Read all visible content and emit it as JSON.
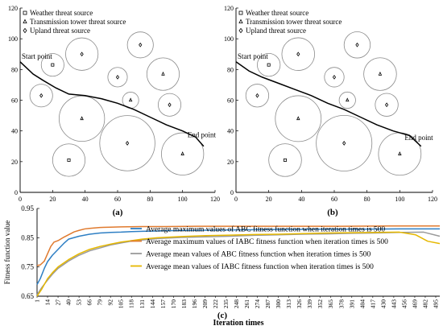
{
  "chart_data": [
    {
      "type": "scatter",
      "panel_label": "(a)",
      "xlim": [
        0,
        120
      ],
      "ylim": [
        0,
        120
      ],
      "xticks": [
        0,
        20,
        40,
        60,
        80,
        100,
        120
      ],
      "yticks": [
        0,
        20,
        40,
        60,
        80,
        100,
        120
      ],
      "grid": false,
      "legend": [
        "Weather threat source",
        "Transmission tower threat source",
        "Upland threat source"
      ],
      "legend_placement": "top-left",
      "annotations": [
        {
          "text": "Start point",
          "x": 1,
          "y": 87
        },
        {
          "text": "End point",
          "x": 103,
          "y": 36
        }
      ],
      "threats": [
        {
          "cx": 20,
          "cy": 83,
          "r": 7,
          "marker": "square"
        },
        {
          "cx": 38,
          "cy": 90,
          "r": 10,
          "marker": "diamond"
        },
        {
          "cx": 13,
          "cy": 63,
          "r": 7,
          "marker": "diamond"
        },
        {
          "cx": 38,
          "cy": 48,
          "r": 14,
          "marker": "triangle"
        },
        {
          "cx": 30,
          "cy": 21,
          "r": 10,
          "marker": "square"
        },
        {
          "cx": 60,
          "cy": 75,
          "r": 6,
          "marker": "diamond"
        },
        {
          "cx": 74,
          "cy": 96,
          "r": 8,
          "marker": "diamond"
        },
        {
          "cx": 68,
          "cy": 60,
          "r": 5,
          "marker": "triangle"
        },
        {
          "cx": 88,
          "cy": 77,
          "r": 10,
          "marker": "triangle"
        },
        {
          "cx": 92,
          "cy": 57,
          "r": 7,
          "marker": "diamond"
        },
        {
          "cx": 66,
          "cy": 32,
          "r": 17,
          "marker": "diamond"
        },
        {
          "cx": 100,
          "cy": 25,
          "r": 13,
          "marker": "triangle"
        }
      ],
      "path": {
        "x": [
          0,
          8,
          14,
          22,
          30,
          40,
          50,
          60,
          70,
          80,
          90,
          100,
          108,
          113
        ],
        "y": [
          85,
          77,
          73,
          68,
          64,
          63,
          61,
          58,
          54,
          49,
          44,
          40,
          36,
          30
        ]
      }
    },
    {
      "type": "scatter",
      "panel_label": "(b)",
      "xlim": [
        0,
        120
      ],
      "ylim": [
        0,
        120
      ],
      "xticks": [
        0,
        20,
        40,
        60,
        80,
        100,
        120
      ],
      "yticks": [
        0,
        20,
        40,
        60,
        80,
        100,
        120
      ],
      "grid": false,
      "legend": [
        "Weather threat source",
        "Transmission tower threat source",
        "Upland threat source"
      ],
      "legend_placement": "top-left",
      "annotations": [
        {
          "text": "Start point",
          "x": 1,
          "y": 87
        },
        {
          "text": "End point",
          "x": 103,
          "y": 34
        }
      ],
      "threats": [
        {
          "cx": 20,
          "cy": 83,
          "r": 7,
          "marker": "square"
        },
        {
          "cx": 38,
          "cy": 90,
          "r": 10,
          "marker": "diamond"
        },
        {
          "cx": 13,
          "cy": 63,
          "r": 7,
          "marker": "diamond"
        },
        {
          "cx": 38,
          "cy": 48,
          "r": 14,
          "marker": "triangle"
        },
        {
          "cx": 30,
          "cy": 21,
          "r": 10,
          "marker": "square"
        },
        {
          "cx": 60,
          "cy": 75,
          "r": 6,
          "marker": "diamond"
        },
        {
          "cx": 74,
          "cy": 96,
          "r": 8,
          "marker": "diamond"
        },
        {
          "cx": 68,
          "cy": 60,
          "r": 5,
          "marker": "triangle"
        },
        {
          "cx": 88,
          "cy": 77,
          "r": 10,
          "marker": "triangle"
        },
        {
          "cx": 92,
          "cy": 57,
          "r": 7,
          "marker": "diamond"
        },
        {
          "cx": 66,
          "cy": 32,
          "r": 17,
          "marker": "diamond"
        },
        {
          "cx": 100,
          "cy": 25,
          "r": 13,
          "marker": "triangle"
        }
      ],
      "path": {
        "x": [
          0,
          8,
          16,
          26,
          36,
          46,
          56,
          66,
          76,
          86,
          96,
          106,
          113
        ],
        "y": [
          85,
          79,
          75,
          71,
          67,
          63,
          58,
          54,
          49,
          44,
          40,
          37,
          30
        ]
      }
    },
    {
      "type": "line",
      "panel_label": "(c)",
      "xlabel": "Iteration times",
      "ylabel": "Fitness function value",
      "xlim": [
        1,
        500
      ],
      "ylim": [
        0.65,
        0.95
      ],
      "yticks": [
        0.65,
        0.75,
        0.85,
        0.95
      ],
      "ytick_labels": [
        "0.65",
        "0.75",
        "0.85",
        "0.95"
      ],
      "xticks": [
        1,
        14,
        27,
        40,
        53,
        66,
        79,
        92,
        105,
        118,
        131,
        144,
        157,
        170,
        183,
        196,
        209,
        222,
        235,
        248,
        261,
        274,
        287,
        300,
        313,
        326,
        339,
        352,
        365,
        378,
        391,
        404,
        417,
        430,
        443,
        456,
        469,
        482,
        495
      ],
      "grid": false,
      "legend_placement": "center-right",
      "series": [
        {
          "name": "Average maximum values of ABC fitness function when iteration times is 500",
          "color": "#2e7fc4",
          "x": [
            1,
            5,
            10,
            14,
            20,
            27,
            34,
            40,
            53,
            66,
            79,
            92,
            105,
            118,
            131,
            150,
            180,
            220,
            260,
            300,
            350,
            400,
            450,
            500
          ],
          "y": [
            0.69,
            0.71,
            0.745,
            0.768,
            0.79,
            0.81,
            0.83,
            0.845,
            0.855,
            0.862,
            0.866,
            0.868,
            0.869,
            0.871,
            0.872,
            0.873,
            0.875,
            0.876,
            0.877,
            0.878,
            0.879,
            0.879,
            0.88,
            0.88
          ]
        },
        {
          "name": "Average maximum values of IABC fitness function when iteration times is 500",
          "color": "#e07a2e",
          "x": [
            1,
            5,
            10,
            14,
            18,
            22,
            27,
            33,
            40,
            47,
            53,
            60,
            66,
            79,
            92,
            105,
            131,
            160,
            200,
            260,
            320,
            380,
            440,
            500
          ],
          "y": [
            0.755,
            0.757,
            0.77,
            0.795,
            0.82,
            0.835,
            0.84,
            0.85,
            0.86,
            0.87,
            0.875,
            0.88,
            0.882,
            0.885,
            0.886,
            0.887,
            0.888,
            0.888,
            0.889,
            0.889,
            0.889,
            0.889,
            0.89,
            0.89
          ]
        },
        {
          "name": "Average mean values of ABC fitness function when iteration times is 500",
          "color": "#9a9a9a",
          "x": [
            1,
            7,
            14,
            20,
            27,
            40,
            53,
            66,
            79,
            92,
            105,
            118,
            131,
            150,
            180,
            210,
            240,
            270,
            300,
            330,
            360,
            390,
            420,
            450,
            480,
            500
          ],
          "y": [
            0.655,
            0.68,
            0.705,
            0.725,
            0.745,
            0.77,
            0.79,
            0.805,
            0.815,
            0.825,
            0.832,
            0.838,
            0.842,
            0.847,
            0.851,
            0.853,
            0.855,
            0.858,
            0.86,
            0.862,
            0.863,
            0.865,
            0.866,
            0.868,
            0.869,
            0.855
          ]
        },
        {
          "name": "Average mean values of IABC fitness function when iteration times is 500",
          "color": "#e6b800",
          "x": [
            1,
            7,
            14,
            20,
            27,
            40,
            53,
            66,
            79,
            92,
            105,
            118,
            131,
            150,
            180,
            210,
            240,
            270,
            300,
            330,
            360,
            390,
            420,
            450,
            470,
            485,
            500
          ],
          "y": [
            0.65,
            0.675,
            0.71,
            0.73,
            0.75,
            0.775,
            0.795,
            0.81,
            0.82,
            0.828,
            0.835,
            0.84,
            0.845,
            0.85,
            0.854,
            0.857,
            0.859,
            0.861,
            0.862,
            0.864,
            0.866,
            0.867,
            0.868,
            0.869,
            0.86,
            0.838,
            0.83
          ]
        }
      ]
    }
  ]
}
